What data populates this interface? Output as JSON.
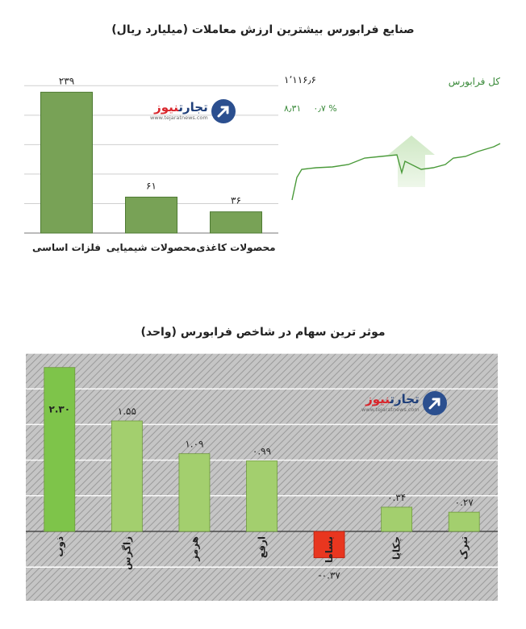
{
  "chart_data": [
    {
      "type": "bar",
      "title": "صنایع فرابورس بیشترین ارزش معاملات  (میلیارد ریال)",
      "categories": [
        "فلزات اساسی",
        "محصولات شیمیایی",
        "محصولات کاغذی"
      ],
      "values": [
        239,
        61,
        36
      ],
      "value_labels": [
        "۲۳۹",
        "۶۱",
        "۳۶"
      ],
      "ylim": [
        0,
        260
      ],
      "grid": true,
      "bar_color": "#78a256"
    },
    {
      "type": "line",
      "title": "کل فرابورس",
      "index_value": "۱٬۱۱۶٫۶",
      "change_points": "۸٫۳۱",
      "change_percent": "۰٫۷ %",
      "trend": "up",
      "line_color": "#4a9a3a"
    },
    {
      "type": "bar",
      "title": "موثر ترین سهام در شاخص فرابورس (واحد)",
      "categories": [
        "ذوب",
        "زاگرس",
        "هرمز",
        "ارفع",
        "بساما",
        "چکاپا",
        "تپرک"
      ],
      "values": [
        2.3,
        1.55,
        1.09,
        0.99,
        -0.37,
        0.34,
        0.27
      ],
      "value_labels": [
        "۲.۳۰",
        "۱.۵۵",
        "۱.۰۹",
        "۰.۹۹",
        "-۰.۳۷",
        "۰.۳۴",
        "۰.۲۷"
      ],
      "ylim": [
        -1.0,
        2.5
      ],
      "positive_color": "#a3cf6e",
      "highlight_color": "#7ec44a",
      "negative_color": "#e8361f"
    }
  ],
  "logo": {
    "brand_part1": "تجارت",
    "brand_part2": "نیوز",
    "url": "www.tejaratnews.com"
  }
}
